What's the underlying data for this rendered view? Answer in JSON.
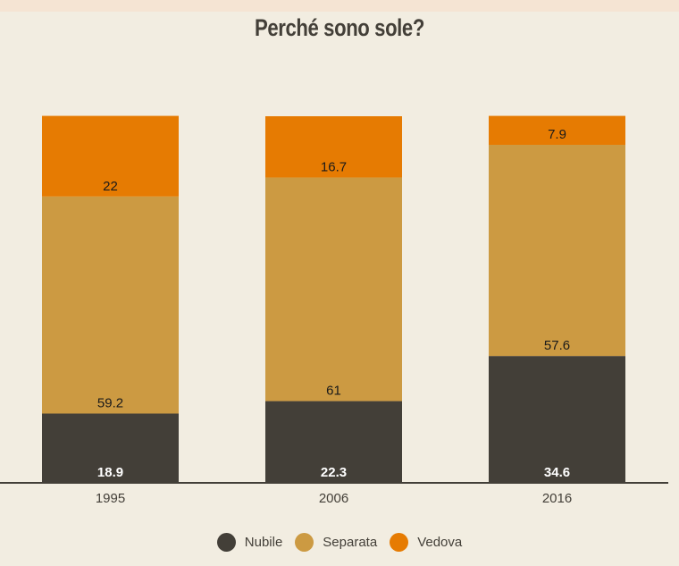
{
  "chart_data": {
    "type": "bar",
    "stacked": true,
    "title": "Perché sono sole?",
    "categories": [
      "1995",
      "2006",
      "2016"
    ],
    "series": [
      {
        "name": "Nubile",
        "color": "#433f38",
        "values": [
          18.9,
          22.3,
          34.6
        ]
      },
      {
        "name": "Separata",
        "color": "#cc9a42",
        "values": [
          59.2,
          61,
          57.6
        ]
      },
      {
        "name": "Vedova",
        "color": "#e67b02",
        "values": [
          22,
          16.7,
          7.9
        ]
      }
    ],
    "ylim": [
      0,
      100
    ],
    "grid": false,
    "legend": "bottom",
    "background": "#f2ede1"
  }
}
